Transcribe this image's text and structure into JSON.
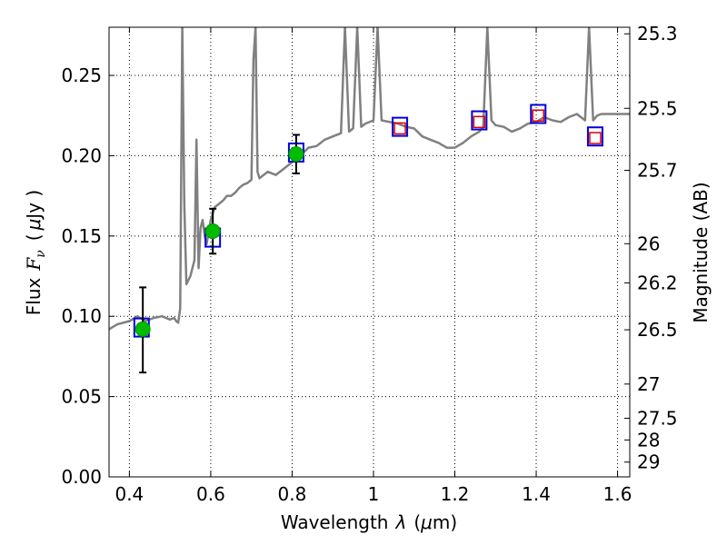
{
  "chart_data": {
    "type": "scatter",
    "xlabel": "Wavelength",
    "xlabel_symbol": "λ",
    "xlabel_unit_open": "(",
    "xlabel_unit_mu": "μ",
    "xlabel_unit_rest": "m)",
    "ylabel": "Flux",
    "ylabel_symbol": "F",
    "ylabel_symbol_sub": "ν",
    "ylabel_unit_open": "(",
    "ylabel_unit_mu": "μ",
    "ylabel_unit_rest": "Jy )",
    "y2label": "Magnitude (AB)",
    "xlim": [
      0.35,
      1.63
    ],
    "ylim": [
      0.0,
      0.28
    ],
    "grid": true,
    "x_ticks": [
      0.4,
      0.6,
      0.8,
      1.0,
      1.2,
      1.4,
      1.6
    ],
    "x_tick_labels": [
      "0.4",
      "0.6",
      "0.8",
      "1",
      "1.2",
      "1.4",
      "1.6"
    ],
    "y_ticks": [
      0.0,
      0.05,
      0.1,
      0.15,
      0.2,
      0.25
    ],
    "y_tick_labels": [
      "0.00",
      "0.05",
      "0.10",
      "0.15",
      "0.20",
      "0.25"
    ],
    "y2_ticks": [
      {
        "flux": 0.2759,
        "label": "25.3"
      },
      {
        "flux": 0.2295,
        "label": "25.5"
      },
      {
        "flux": 0.1909,
        "label": "25.7"
      },
      {
        "flux": 0.1452,
        "label": "26"
      },
      {
        "flux": 0.1208,
        "label": "26.2"
      },
      {
        "flux": 0.0916,
        "label": "26.5"
      },
      {
        "flux": 0.0578,
        "label": "27"
      },
      {
        "flux": 0.0365,
        "label": "27.5"
      },
      {
        "flux": 0.023,
        "label": "28"
      },
      {
        "flux": 0.0092,
        "label": "29"
      }
    ],
    "colors": {
      "sed": "#808080",
      "observed_marker": "#00bb00",
      "model_box": "#0000dd",
      "predicted_marker": "#dd0000",
      "errorbar": "#000000"
    },
    "series": [
      {
        "type": "line",
        "x": [
          0.35,
          0.37,
          0.4,
          0.42,
          0.44,
          0.46,
          0.48,
          0.5,
          0.51,
          0.515,
          0.52,
          0.525,
          0.53,
          0.535,
          0.54,
          0.55,
          0.56,
          0.565,
          0.57,
          0.575,
          0.58,
          0.585,
          0.59,
          0.6,
          0.61,
          0.62,
          0.63,
          0.64,
          0.65,
          0.66,
          0.67,
          0.68,
          0.69,
          0.7,
          0.705,
          0.71,
          0.715,
          0.72,
          0.74,
          0.76,
          0.78,
          0.8,
          0.82,
          0.84,
          0.86,
          0.88,
          0.9,
          0.92,
          0.93,
          0.94,
          0.95,
          0.96,
          0.97,
          0.98,
          1.0,
          1.01,
          1.02,
          1.04,
          1.06,
          1.08,
          1.1,
          1.12,
          1.14,
          1.16,
          1.18,
          1.2,
          1.22,
          1.24,
          1.26,
          1.27,
          1.28,
          1.29,
          1.3,
          1.32,
          1.34,
          1.36,
          1.38,
          1.4,
          1.42,
          1.44,
          1.46,
          1.48,
          1.5,
          1.52,
          1.53,
          1.54,
          1.55,
          1.56,
          1.58,
          1.6,
          1.63
        ],
        "y": [
          0.092,
          0.095,
          0.097,
          0.1,
          0.097,
          0.099,
          0.1,
          0.098,
          0.099,
          0.097,
          0.096,
          0.105,
          0.28,
          0.17,
          0.12,
          0.125,
          0.135,
          0.21,
          0.13,
          0.155,
          0.16,
          0.15,
          0.145,
          0.16,
          0.168,
          0.17,
          0.172,
          0.175,
          0.175,
          0.177,
          0.18,
          0.182,
          0.183,
          0.185,
          0.26,
          0.28,
          0.19,
          0.186,
          0.19,
          0.188,
          0.192,
          0.196,
          0.2,
          0.205,
          0.206,
          0.21,
          0.212,
          0.214,
          0.28,
          0.215,
          0.217,
          0.28,
          0.218,
          0.22,
          0.222,
          0.28,
          0.222,
          0.221,
          0.22,
          0.218,
          0.217,
          0.212,
          0.21,
          0.208,
          0.205,
          0.205,
          0.208,
          0.212,
          0.215,
          0.218,
          0.28,
          0.222,
          0.219,
          0.218,
          0.215,
          0.217,
          0.22,
          0.221,
          0.224,
          0.222,
          0.221,
          0.224,
          0.226,
          0.222,
          0.28,
          0.222,
          0.225,
          0.226,
          0.226,
          0.226,
          0.226
        ]
      },
      {
        "type": "model_boxes",
        "x": [
          0.43,
          0.605,
          0.81,
          1.065,
          1.26,
          1.405,
          1.545
        ],
        "y": [
          0.093,
          0.149,
          0.202,
          0.218,
          0.222,
          0.226,
          0.212
        ]
      },
      {
        "type": "observed",
        "x": [
          0.433,
          0.605,
          0.81
        ],
        "y": [
          0.092,
          0.153,
          0.201
        ],
        "yerr_low": [
          0.065,
          0.139,
          0.189
        ],
        "yerr_high": [
          0.118,
          0.167,
          0.213
        ]
      },
      {
        "type": "predicted",
        "x": [
          1.065,
          1.26,
          1.405,
          1.545
        ],
        "y": [
          0.217,
          0.221,
          0.225,
          0.211
        ]
      }
    ]
  }
}
